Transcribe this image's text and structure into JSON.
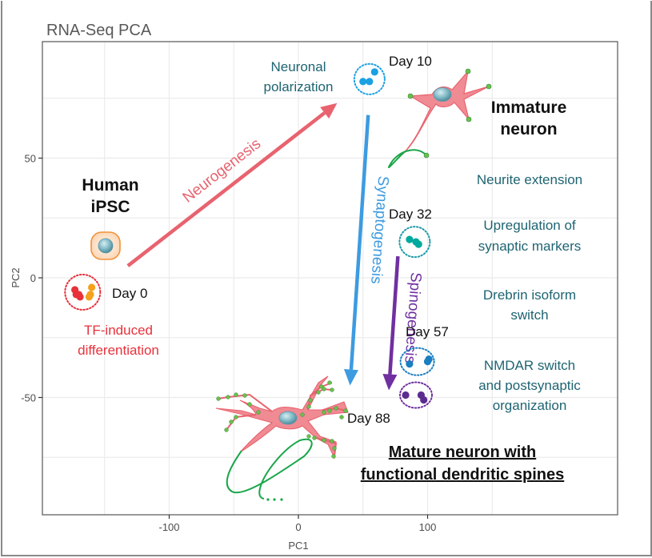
{
  "chart_data": {
    "type": "scatter",
    "title": "RNA-Seq PCA",
    "xlabel": "PC1",
    "ylabel": "PC2",
    "xlim": [
      -200,
      150
    ],
    "ylim": [
      -95,
      100
    ],
    "grid": true,
    "x_ticks": [
      -100,
      0,
      100
    ],
    "x_tick_labels": [
      "-100",
      "0",
      "100"
    ],
    "y_ticks": [
      50,
      0,
      -50
    ],
    "y_tick_labels": [
      "50",
      "0",
      "-50"
    ],
    "series": [
      {
        "name": "Day 0 (a)",
        "color": "#e8313a",
        "points": [
          [
            -173,
            -5
          ],
          [
            -170,
            -7
          ],
          [
            -169,
            -8
          ],
          [
            -172,
            -7
          ]
        ]
      },
      {
        "name": "Day 0 (b)",
        "color": "#f5a11c",
        "points": [
          [
            -160,
            -4
          ],
          [
            -161,
            -7
          ],
          [
            -162,
            -8
          ]
        ]
      },
      {
        "name": "Day 10",
        "color": "#1ba1e2",
        "points": [
          [
            50,
            82
          ],
          [
            55,
            82
          ],
          [
            59,
            86
          ]
        ]
      },
      {
        "name": "Day 32",
        "color": "#00a99d",
        "points": [
          [
            86,
            16
          ],
          [
            91,
            15
          ],
          [
            93,
            14
          ]
        ]
      },
      {
        "name": "Day 57",
        "color": "#1a7fc1",
        "points": [
          [
            86,
            -36
          ],
          [
            100,
            -35
          ],
          [
            101,
            -34
          ]
        ]
      },
      {
        "name": "Day 88",
        "color": "#5b2c8f",
        "points": [
          [
            83,
            -49
          ],
          [
            95,
            -49
          ],
          [
            97,
            -51
          ]
        ]
      }
    ],
    "groups": [
      {
        "label": "Day 0",
        "center": [
          -167,
          -6
        ],
        "color": "#e8313a"
      },
      {
        "label": "Day 10",
        "center": [
          55,
          83
        ],
        "color": "#1ba1e2"
      },
      {
        "label": "Day 32",
        "center": [
          90,
          15
        ],
        "color": "#1a9aa8"
      },
      {
        "label": "Day 57",
        "center": [
          92,
          -35
        ],
        "color": "#1a7fc1"
      },
      {
        "label": "Day 88",
        "center": [
          91,
          -49
        ],
        "color": "#7030a0"
      }
    ],
    "arrows": [
      {
        "label": "Neurogenesis",
        "from": [
          -132,
          5
        ],
        "to": [
          30,
          73
        ],
        "color": "#e8636f"
      },
      {
        "label": "Synaptogenesis",
        "from": [
          54,
          68
        ],
        "to": [
          40,
          -45
        ],
        "color": "#3d9be0"
      },
      {
        "label": "Spinogenesis",
        "from": [
          77,
          9
        ],
        "to": [
          70,
          -47
        ],
        "color": "#7030a0"
      }
    ],
    "annotations": {
      "human_ipsc": [
        "Human",
        "iPSC"
      ],
      "tf_induced": [
        "TF-induced",
        "differentiation"
      ],
      "neuronal_polarization": [
        "Neuronal",
        "polarization"
      ],
      "immature_neuron": [
        "Immature",
        "neuron"
      ],
      "neurite_extension": [
        "Neurite extension"
      ],
      "upregulation": [
        "Upregulation of",
        "synaptic markers"
      ],
      "drebrin": [
        "Drebrin isoform",
        "switch"
      ],
      "nmdar": [
        "NMDAR switch",
        "and postsynaptic",
        "organization"
      ],
      "mature_neuron": [
        "Mature neuron with",
        "functional dendritic spines"
      ]
    },
    "day_labels": [
      "Day 0",
      "Day 10",
      "Day 32",
      "Day 57",
      "Day 88"
    ]
  }
}
